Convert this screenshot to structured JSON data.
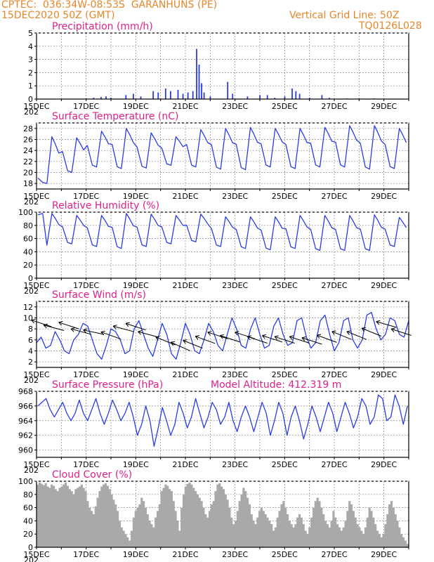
{
  "header": {
    "line1": "CPTEC:  036:34W-08:53S  GARANHUNS (PE)",
    "line2": "15DEC2020 50Z (GMT)",
    "right1": "Vertical Grid Line: 50Z",
    "right2": "TQ0126L028"
  },
  "colors": {
    "series": "#2b3ce6",
    "cloud": "#a9a9a9",
    "title": "#e0208a",
    "header": "#e8862a"
  },
  "chart_data": [
    {
      "type": "bar",
      "title": "Precipitation (mm/h)",
      "ylim": [
        0,
        5
      ],
      "yticks": [
        "0",
        "1",
        "2",
        "3",
        "4",
        "5"
      ],
      "x_labels": [
        "15DEC",
        "17DEC",
        "19DEC",
        "21DEC",
        "23DEC",
        "25DEC",
        "27DEC",
        "29DEC"
      ],
      "x_sublabel": "202",
      "x_start_day": 15,
      "x_end_day": 30,
      "points": [
        [
          17.0,
          0.05
        ],
        [
          17.3,
          0.1
        ],
        [
          17.6,
          0.15
        ],
        [
          17.8,
          0.2
        ],
        [
          18.0,
          0.1
        ],
        [
          18.6,
          0.3
        ],
        [
          18.9,
          0.4
        ],
        [
          19.2,
          0.2
        ],
        [
          19.7,
          0.6
        ],
        [
          19.9,
          0.5
        ],
        [
          20.2,
          0.8
        ],
        [
          20.4,
          0.6
        ],
        [
          20.7,
          0.7
        ],
        [
          20.9,
          0.4
        ],
        [
          21.1,
          0.5
        ],
        [
          21.3,
          0.6
        ],
        [
          21.45,
          3.8
        ],
        [
          21.55,
          2.6
        ],
        [
          21.65,
          1.2
        ],
        [
          21.75,
          0.5
        ],
        [
          22.0,
          0.2
        ],
        [
          22.7,
          1.3
        ],
        [
          22.9,
          0.4
        ],
        [
          23.5,
          0.2
        ],
        [
          24.0,
          0.3
        ],
        [
          24.3,
          0.3
        ],
        [
          24.6,
          0.1
        ],
        [
          25.0,
          0.2
        ],
        [
          25.3,
          0.8
        ],
        [
          25.45,
          0.6
        ],
        [
          25.6,
          0.4
        ],
        [
          26.0,
          0.1
        ],
        [
          26.5,
          0.3
        ],
        [
          26.8,
          0.1
        ],
        [
          27.5,
          0.05
        ],
        [
          28.0,
          0.05
        ],
        [
          28.6,
          0.05
        ]
      ]
    },
    {
      "type": "line",
      "title": "Surface Temperature (nC)",
      "ylim": [
        17,
        29
      ],
      "yticks": [
        "18",
        "20",
        "22",
        "24",
        "26",
        "28"
      ],
      "x_labels": [
        "15DEC",
        "17DEC",
        "19DEC",
        "21DEC",
        "23DEC",
        "25DEC",
        "27DEC",
        "29DEC"
      ],
      "x_sublabel": "202",
      "x_start_day": 15,
      "x_end_day": 30,
      "minima": [
        18.0,
        20.0,
        21.0,
        20.7,
        20.8,
        21.3,
        21.0,
        20.6,
        20.5,
        21.0,
        20.7,
        21.0,
        21.0,
        20.6,
        20.7
      ],
      "maxima": [
        26.5,
        26.3,
        27.5,
        28.0,
        27.2,
        26.5,
        27.8,
        28.0,
        28.2,
        28.0,
        28.0,
        28.2,
        28.5,
        28.5,
        28.0
      ]
    },
    {
      "type": "line",
      "title": "Relative Humidity (%)",
      "ylim": [
        0,
        100
      ],
      "yticks": [
        "0",
        "20",
        "40",
        "60",
        "80",
        "100"
      ],
      "x_labels": [
        "15DEC",
        "17DEC",
        "19DEC",
        "21DEC",
        "23DEC",
        "25DEC",
        "27DEC",
        "29DEC"
      ],
      "x_sublabel": "202",
      "x_start_day": 15,
      "x_end_day": 30,
      "minima": [
        50,
        52,
        48,
        45,
        48,
        52,
        55,
        48,
        45,
        43,
        45,
        42,
        42,
        42,
        48
      ],
      "maxima": [
        98,
        95,
        95,
        98,
        97,
        95,
        97,
        93,
        93,
        93,
        95,
        95,
        95,
        96,
        92
      ]
    },
    {
      "type": "line",
      "title": "Surface Wind (m/s)",
      "ylim": [
        1,
        13
      ],
      "yticks": [
        "2",
        "4",
        "6",
        "8",
        "10",
        "12"
      ],
      "x_labels": [
        "15DEC",
        "17DEC",
        "19DEC",
        "21DEC",
        "23DEC",
        "25DEC",
        "27DEC",
        "29DEC"
      ],
      "x_sublabel": "202",
      "x_start_day": 15,
      "x_end_day": 30,
      "values": [
        5.5,
        6.5,
        4.5,
        5.0,
        7.5,
        6.0,
        4.0,
        3.5,
        6.0,
        7.0,
        9.0,
        8.5,
        6.0,
        3.5,
        2.5,
        5.0,
        8.0,
        7.5,
        6.0,
        3.5,
        4.0,
        8.0,
        9.5,
        7.0,
        4.5,
        3.0,
        6.0,
        9.0,
        7.0,
        3.5,
        2.5,
        5.5,
        9.0,
        7.0,
        4.0,
        3.5,
        6.0,
        9.0,
        7.5,
        5.0,
        4.0,
        7.0,
        10.0,
        8.0,
        5.0,
        4.5,
        8.0,
        10.0,
        7.0,
        4.5,
        5.0,
        8.5,
        10.0,
        7.0,
        5.0,
        5.5,
        9.5,
        10.0,
        6.5,
        4.5,
        5.5,
        9.5,
        10.5,
        7.0,
        4.0,
        5.5,
        9.5,
        10.0,
        6.0,
        4.5,
        6.0,
        10.5,
        11.0,
        8.0,
        6.0,
        7.0,
        10.0,
        9.5,
        7.0,
        6.5,
        9.5
      ],
      "arrows": [
        [
          15.2,
          9.0,
          -18
        ],
        [
          15.7,
          8.2,
          -15
        ],
        [
          16.3,
          8.6,
          -18
        ],
        [
          16.8,
          7.5,
          -15
        ],
        [
          17.3,
          7.4,
          -12
        ],
        [
          18.0,
          6.8,
          -20
        ],
        [
          18.5,
          8.0,
          -15
        ],
        [
          19.0,
          8.4,
          -18
        ],
        [
          19.5,
          7.0,
          -15
        ],
        [
          20.2,
          5.8,
          -22
        ],
        [
          20.8,
          4.8,
          -24
        ],
        [
          21.3,
          5.2,
          -22
        ],
        [
          21.8,
          6.0,
          -20
        ],
        [
          22.3,
          6.8,
          -18
        ],
        [
          22.8,
          6.2,
          -18
        ],
        [
          23.4,
          6.8,
          -18
        ],
        [
          23.9,
          6.0,
          -18
        ],
        [
          24.5,
          6.2,
          -18
        ],
        [
          25.0,
          6.0,
          -18
        ],
        [
          25.6,
          6.0,
          -18
        ],
        [
          26.1,
          5.8,
          -18
        ],
        [
          26.7,
          6.2,
          -20
        ],
        [
          27.3,
          6.8,
          -22
        ],
        [
          27.9,
          6.8,
          -22
        ],
        [
          28.5,
          7.4,
          -22
        ],
        [
          29.1,
          8.8,
          -16
        ],
        [
          29.7,
          7.4,
          -18
        ]
      ]
    },
    {
      "type": "line",
      "title": "Surface Pressure (hPa)",
      "annotation": "Model Altitude: 412.319  m",
      "ylim": [
        959,
        968
      ],
      "yticks": [
        "960",
        "962",
        "964",
        "966",
        "968"
      ],
      "x_labels": [
        "15DEC",
        "17DEC",
        "19DEC",
        "21DEC",
        "23DEC",
        "25DEC",
        "27DEC",
        "29DEC"
      ],
      "x_sublabel": "202",
      "x_start_day": 15,
      "x_end_day": 30,
      "values": [
        966.0,
        966.5,
        967.0,
        965.5,
        964.5,
        965.5,
        966.5,
        965.0,
        964.0,
        965.0,
        966.8,
        965.0,
        964.0,
        965.5,
        967.0,
        965.0,
        963.5,
        965.0,
        966.8,
        965.5,
        964.0,
        965.0,
        966.5,
        964.5,
        962.0,
        963.5,
        966.0,
        964.0,
        960.5,
        963.0,
        965.8,
        964.0,
        962.0,
        963.5,
        966.5,
        965.0,
        963.0,
        964.5,
        967.0,
        965.0,
        963.0,
        964.5,
        966.5,
        965.5,
        963.5,
        964.5,
        966.5,
        964.0,
        962.5,
        964.5,
        966.0,
        964.5,
        962.5,
        964.5,
        966.5,
        965.0,
        962.0,
        964.0,
        966.5,
        965.0,
        962.0,
        964.5,
        966.0,
        964.0,
        961.5,
        963.5,
        966.0,
        964.5,
        962.5,
        964.5,
        966.5,
        965.0,
        962.5,
        964.5,
        966.5,
        965.0,
        963.0,
        964.5,
        967.0,
        966.0,
        963.5,
        964.5,
        967.5,
        967.0,
        964.0,
        964.5,
        967.5,
        966.0,
        963.5,
        966.0
      ],
      "values_first_day": 15.05,
      "values_last_day": 29.95
    },
    {
      "type": "area",
      "title": "Cloud Cover (%)",
      "ylim": [
        0,
        100
      ],
      "yticks": [
        "0",
        "20",
        "40",
        "60",
        "80",
        "100"
      ],
      "x_labels": [
        "15DEC",
        "17DEC",
        "19DEC",
        "21DEC",
        "23DEC",
        "25DEC",
        "27DEC",
        "29DEC"
      ],
      "x_sublabel": "202",
      "x_start_day": 15,
      "x_end_day": 30,
      "values": [
        95,
        98,
        96,
        94,
        97,
        92,
        90,
        95,
        93,
        88,
        85,
        90,
        92,
        95,
        98,
        93,
        88,
        85,
        80,
        88,
        90,
        92,
        95,
        90,
        85,
        70,
        60,
        55,
        50,
        62,
        75,
        85,
        92,
        95,
        97,
        93,
        88,
        80,
        72,
        65,
        55,
        40,
        30,
        25,
        20,
        15,
        10,
        25,
        45,
        55,
        60,
        65,
        75,
        70,
        60,
        50,
        40,
        35,
        30,
        45,
        55,
        65,
        85,
        90,
        95,
        93,
        88,
        85,
        70,
        55,
        40,
        25,
        60,
        80,
        92,
        96,
        98,
        95,
        90,
        85,
        80,
        75,
        70,
        60,
        50,
        45,
        55,
        65,
        70,
        85,
        95,
        97,
        92,
        88,
        80,
        72,
        60,
        45,
        35,
        40,
        55,
        70,
        80,
        90,
        85,
        75,
        65,
        50,
        40,
        35,
        45,
        55,
        60,
        55,
        50,
        45,
        40,
        35,
        25,
        30,
        45,
        55,
        65,
        70,
        60,
        50,
        40,
        35,
        30,
        35,
        45,
        50,
        45,
        35,
        25,
        20,
        30,
        45,
        60,
        70,
        75,
        70,
        60,
        50,
        40,
        35,
        30,
        40,
        55,
        45,
        35,
        30,
        25,
        30,
        40,
        55,
        70,
        65,
        55,
        45,
        35,
        30,
        25,
        20,
        30,
        45,
        60,
        55,
        45,
        35,
        25,
        20,
        15,
        20,
        35,
        50,
        65,
        70,
        60,
        50,
        40,
        30,
        20,
        15,
        10,
        5
      ],
      "values_first_day": 15.05,
      "values_last_day": 29.95
    }
  ]
}
